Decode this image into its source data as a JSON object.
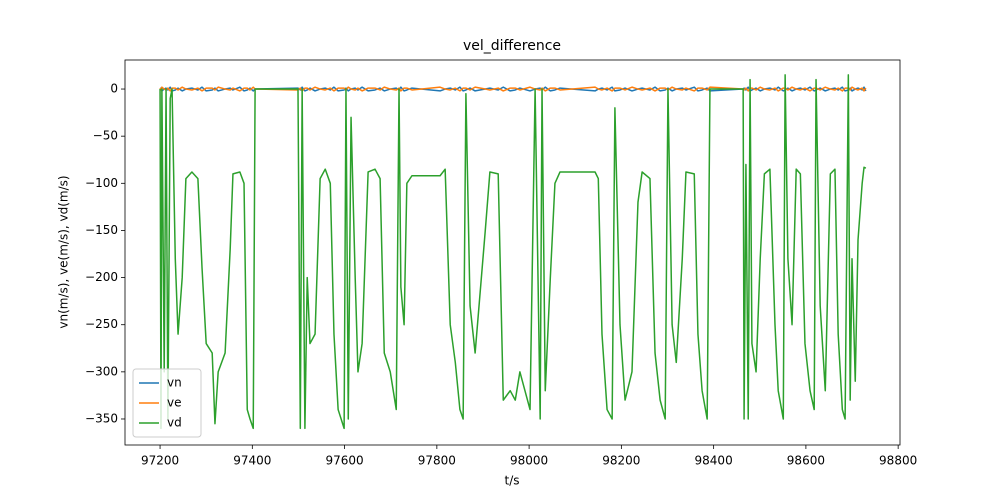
{
  "chart_data": {
    "type": "line",
    "title": "vel_difference",
    "x_label": "t/s",
    "y_label": "vn(m/s), ve(m/s), vd(m/s)",
    "x": [
      97200,
      97202,
      97204,
      97209,
      97213,
      97217,
      97222,
      97226,
      97233,
      97239,
      97248,
      97256,
      97269,
      97282,
      97291,
      97300,
      97313,
      97319,
      97326,
      97341,
      97352,
      97358,
      97373,
      97382,
      97389,
      97395,
      97402,
      97406,
      97499,
      97504,
      97508,
      97514,
      97519,
      97525,
      97536,
      97547,
      97558,
      97569,
      97577,
      97586,
      97599,
      97603,
      97608,
      97614,
      97623,
      97629,
      97638,
      97651,
      97666,
      97677,
      97686,
      97699,
      97712,
      97718,
      97722,
      97729,
      97735,
      97746,
      97807,
      97818,
      97829,
      97840,
      97850,
      97857,
      97863,
      97872,
      97883,
      97905,
      97915,
      97933,
      97944,
      97959,
      97970,
      97980,
      98002,
      98013,
      98024,
      98028,
      98035,
      98046,
      98056,
      98067,
      98143,
      98150,
      98158,
      98169,
      98180,
      98186,
      98197,
      98208,
      98223,
      98236,
      98245,
      98262,
      98273,
      98284,
      98295,
      98301,
      98310,
      98319,
      98332,
      98340,
      98358,
      98366,
      98375,
      98386,
      98392,
      98464,
      98466,
      98470,
      98475,
      98479,
      98483,
      98492,
      98501,
      98510,
      98522,
      98533,
      98540,
      98551,
      98555,
      98561,
      98570,
      98579,
      98588,
      98598,
      98609,
      98618,
      98622,
      98631,
      98642,
      98653,
      98663,
      98670,
      98679,
      98685,
      98692,
      98696,
      98700,
      98707,
      98713,
      98722,
      98726,
      98730
    ],
    "series": [
      {
        "name": "vn",
        "color": "#1f77b4",
        "values": [
          -1,
          1,
          -2,
          0,
          1,
          -1,
          2,
          -2,
          -1,
          1,
          -2,
          0,
          1,
          -1,
          2,
          -2,
          -1,
          1,
          -2,
          0,
          1,
          -1,
          2,
          -2,
          -1,
          1,
          -2,
          0,
          1,
          -1,
          2,
          -2,
          -1,
          1,
          -2,
          0,
          1,
          -1,
          2,
          -2,
          -1,
          1,
          -2,
          0,
          1,
          -1,
          2,
          -2,
          -1,
          1,
          -2,
          0,
          1,
          -1,
          2,
          -2,
          -1,
          1,
          -2,
          0,
          1,
          -1,
          2,
          -2,
          -1,
          1,
          -2,
          0,
          1,
          -1,
          2,
          -2,
          -1,
          1,
          -2,
          0,
          1,
          -1,
          2,
          -2,
          -1,
          1,
          -2,
          0,
          1,
          -1,
          2,
          -2,
          -1,
          1,
          -2,
          0,
          1,
          -1,
          2,
          -2,
          -1,
          1,
          -2,
          0,
          1,
          -1,
          2,
          -2,
          -1,
          1,
          -2,
          0,
          1,
          -1,
          2,
          -2,
          -1,
          1,
          -2,
          0,
          1,
          -1,
          2,
          -2,
          -1,
          1,
          -2,
          0,
          1,
          -1,
          2,
          -2,
          -1,
          1,
          -2,
          0,
          1,
          -1,
          2,
          -2,
          -1,
          1,
          -2,
          0,
          1,
          -1,
          2,
          -2
        ]
      },
      {
        "name": "ve",
        "color": "#ff7f0e",
        "values": [
          1,
          -1,
          2,
          0,
          -1,
          1,
          -2,
          1,
          1,
          -1,
          2,
          0,
          -1,
          1,
          -2,
          1,
          1,
          -1,
          2,
          0,
          -1,
          1,
          -2,
          1,
          1,
          -1,
          2,
          0,
          -1,
          1,
          -2,
          1,
          1,
          -1,
          2,
          0,
          -1,
          1,
          -2,
          1,
          1,
          -1,
          2,
          0,
          -1,
          1,
          -2,
          1,
          1,
          -1,
          2,
          0,
          -1,
          1,
          -2,
          1,
          1,
          -1,
          2,
          0,
          -1,
          1,
          -2,
          1,
          1,
          -1,
          2,
          0,
          -1,
          1,
          -2,
          1,
          1,
          -1,
          2,
          0,
          -1,
          1,
          -2,
          1,
          1,
          -1,
          2,
          0,
          -1,
          1,
          -2,
          1,
          1,
          -1,
          2,
          0,
          -1,
          1,
          -2,
          1,
          1,
          -1,
          2,
          0,
          -1,
          1,
          -2,
          1,
          1,
          -1,
          2,
          0,
          -1,
          1,
          -2,
          1,
          1,
          -1,
          2,
          0,
          -1,
          1,
          -2,
          1,
          1,
          -1,
          2,
          0,
          -1,
          1,
          -2,
          1,
          1,
          -1,
          2,
          0,
          -1,
          1,
          -2,
          1,
          1,
          -1,
          2,
          0,
          -1,
          1,
          -2,
          1
        ]
      },
      {
        "name": "vd",
        "color": "#2ca02c",
        "values": [
          0,
          -360,
          0,
          -300,
          0,
          -350,
          -10,
          0,
          -180,
          -260,
          -200,
          -95,
          -88,
          -95,
          -190,
          -270,
          -280,
          -355,
          -300,
          -280,
          -170,
          -90,
          -88,
          -100,
          -340,
          -350,
          -360,
          0,
          0,
          -360,
          0,
          -360,
          -200,
          -270,
          -260,
          -95,
          -85,
          -100,
          -260,
          -340,
          -360,
          0,
          -350,
          -30,
          -200,
          -300,
          -270,
          -88,
          -85,
          -95,
          -280,
          -300,
          -340,
          0,
          -210,
          -250,
          -100,
          -92,
          -92,
          -85,
          -250,
          -290,
          -340,
          -350,
          -5,
          -230,
          -280,
          -150,
          -88,
          -90,
          -330,
          -320,
          -330,
          -300,
          -340,
          0,
          -350,
          0,
          -320,
          -200,
          -100,
          -88,
          -88,
          -95,
          -260,
          -340,
          -350,
          -20,
          -250,
          -330,
          -300,
          -120,
          -88,
          -95,
          -280,
          -330,
          -350,
          0,
          -250,
          -290,
          -180,
          -88,
          -90,
          -260,
          -320,
          -350,
          0,
          0,
          -350,
          -80,
          -350,
          10,
          -270,
          -300,
          -180,
          -90,
          -85,
          -250,
          -320,
          -350,
          15,
          -180,
          -250,
          -85,
          -90,
          -270,
          -320,
          -340,
          10,
          -230,
          -320,
          -90,
          -85,
          -260,
          -340,
          -350,
          15,
          -330,
          -180,
          -310,
          -160,
          -100,
          -83,
          -84
        ]
      }
    ],
    "xlim": [
      97124,
      98804
    ],
    "ylim": [
      -377.6,
      30.8
    ],
    "xticks": [
      97200,
      97400,
      97600,
      97800,
      98000,
      98200,
      98400,
      98600,
      98800
    ],
    "yticks": [
      {
        "value": -350,
        "label": "−350"
      },
      {
        "value": -300,
        "label": "−300"
      },
      {
        "value": -250,
        "label": "−250"
      },
      {
        "value": -200,
        "label": "−200"
      },
      {
        "value": -150,
        "label": "−150"
      },
      {
        "value": -100,
        "label": "−100"
      },
      {
        "value": -50,
        "label": "−50"
      },
      0
    ],
    "grid": false,
    "legend": "lower left"
  }
}
